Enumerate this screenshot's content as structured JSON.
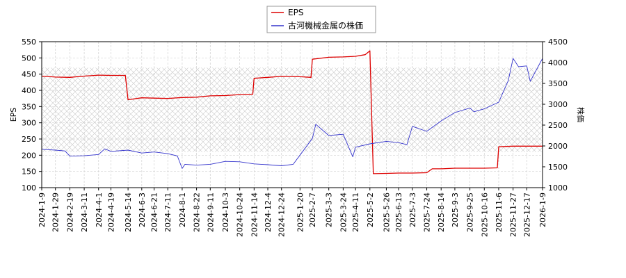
{
  "chart_data": {
    "type": "line",
    "legend": {
      "placement": "top-center",
      "entries": [
        "EPS",
        "古河機械金属の株価"
      ]
    },
    "grid": true,
    "y_left": {
      "label": "EPS",
      "range": [
        100,
        550
      ],
      "ticks": [
        "100",
        "150",
        "200",
        "250",
        "300",
        "350",
        "400",
        "450",
        "500",
        "550"
      ]
    },
    "y_right": {
      "label": "株価",
      "range": [
        1000,
        4500
      ],
      "ticks": [
        "1000",
        "1500",
        "2000",
        "2500",
        "3000",
        "3500",
        "4000",
        "4500"
      ]
    },
    "x": {
      "range": [
        "2024-01-09",
        "2026-01-09"
      ],
      "ticks": [
        "2024-1-9",
        "2024-1-29",
        "2024-2-19",
        "2024-3-11",
        "2024-4-1",
        "2024-4-19",
        "2024-5-14",
        "2024-6-3",
        "2024-6-21",
        "2024-7-11",
        "2024-8-1",
        "2024-8-22",
        "2024-9-11",
        "2024-10-3",
        "2024-10-24",
        "2024-11-14",
        "2024-12-4",
        "2024-12-24",
        "2025-1-20",
        "2025-2-7",
        "2025-3-3",
        "2025-3-24",
        "2025-4-11",
        "2025-5-2",
        "2025-5-26",
        "2025-6-13",
        "2025-7-3",
        "2025-7-24",
        "2025-8-14",
        "2025-9-3",
        "2025-9-25",
        "2025-10-16",
        "2025-11-6",
        "2025-11-27",
        "2025-12-17",
        "2026-1-9"
      ]
    },
    "series": [
      {
        "name": "EPS",
        "axis": "left",
        "color": "#dd0000",
        "points": [
          [
            "2024-01-09",
            444
          ],
          [
            "2024-01-29",
            441
          ],
          [
            "2024-02-19",
            440
          ],
          [
            "2024-03-11",
            444
          ],
          [
            "2024-04-01",
            447
          ],
          [
            "2024-04-19",
            446
          ],
          [
            "2024-05-10",
            446
          ],
          [
            "2024-05-14",
            371
          ],
          [
            "2024-06-03",
            377
          ],
          [
            "2024-06-21",
            376
          ],
          [
            "2024-07-11",
            375
          ],
          [
            "2024-08-01",
            378
          ],
          [
            "2024-08-22",
            379
          ],
          [
            "2024-09-11",
            383
          ],
          [
            "2024-10-03",
            384
          ],
          [
            "2024-10-24",
            387
          ],
          [
            "2024-11-12",
            388
          ],
          [
            "2024-11-14",
            437
          ],
          [
            "2024-12-04",
            440
          ],
          [
            "2024-12-24",
            443
          ],
          [
            "2025-01-20",
            442
          ],
          [
            "2025-02-05",
            440
          ],
          [
            "2025-02-07",
            496
          ],
          [
            "2025-03-03",
            502
          ],
          [
            "2025-03-24",
            503
          ],
          [
            "2025-04-11",
            505
          ],
          [
            "2025-04-25",
            510
          ],
          [
            "2025-05-02",
            522
          ],
          [
            "2025-05-07",
            143
          ],
          [
            "2025-05-26",
            144
          ],
          [
            "2025-06-13",
            145
          ],
          [
            "2025-07-03",
            145
          ],
          [
            "2025-07-24",
            146
          ],
          [
            "2025-08-01",
            158
          ],
          [
            "2025-08-14",
            158
          ],
          [
            "2025-09-03",
            160
          ],
          [
            "2025-09-25",
            160
          ],
          [
            "2025-10-16",
            160
          ],
          [
            "2025-11-04",
            161
          ],
          [
            "2025-11-06",
            226
          ],
          [
            "2025-11-27",
            228
          ],
          [
            "2025-12-17",
            228
          ],
          [
            "2026-01-09",
            228
          ]
        ]
      },
      {
        "name": "古河機械金属の株価",
        "axis": "right",
        "color": "#3333cc",
        "points": [
          [
            "2024-01-09",
            1920
          ],
          [
            "2024-01-29",
            1900
          ],
          [
            "2024-02-12",
            1880
          ],
          [
            "2024-02-19",
            1755
          ],
          [
            "2024-03-11",
            1765
          ],
          [
            "2024-04-01",
            1795
          ],
          [
            "2024-04-10",
            1930
          ],
          [
            "2024-04-19",
            1870
          ],
          [
            "2024-05-14",
            1900
          ],
          [
            "2024-06-03",
            1830
          ],
          [
            "2024-06-21",
            1855
          ],
          [
            "2024-07-11",
            1815
          ],
          [
            "2024-07-25",
            1760
          ],
          [
            "2024-08-01",
            1460
          ],
          [
            "2024-08-05",
            1560
          ],
          [
            "2024-08-22",
            1540
          ],
          [
            "2024-09-11",
            1560
          ],
          [
            "2024-10-03",
            1630
          ],
          [
            "2024-10-24",
            1620
          ],
          [
            "2024-11-14",
            1570
          ],
          [
            "2024-12-04",
            1550
          ],
          [
            "2024-12-24",
            1525
          ],
          [
            "2025-01-10",
            1560
          ],
          [
            "2025-01-20",
            1780
          ],
          [
            "2025-02-07",
            2180
          ],
          [
            "2025-02-12",
            2520
          ],
          [
            "2025-03-03",
            2250
          ],
          [
            "2025-03-24",
            2280
          ],
          [
            "2025-04-07",
            1740
          ],
          [
            "2025-04-11",
            1970
          ],
          [
            "2025-05-02",
            2050
          ],
          [
            "2025-05-26",
            2110
          ],
          [
            "2025-06-13",
            2080
          ],
          [
            "2025-06-25",
            2030
          ],
          [
            "2025-07-03",
            2470
          ],
          [
            "2025-07-24",
            2350
          ],
          [
            "2025-08-14",
            2600
          ],
          [
            "2025-09-03",
            2800
          ],
          [
            "2025-09-25",
            2910
          ],
          [
            "2025-10-01",
            2820
          ],
          [
            "2025-10-16",
            2890
          ],
          [
            "2025-11-06",
            3050
          ],
          [
            "2025-11-20",
            3570
          ],
          [
            "2025-11-27",
            4100
          ],
          [
            "2025-12-05",
            3900
          ],
          [
            "2025-12-17",
            3920
          ],
          [
            "2025-12-22",
            3550
          ],
          [
            "2026-01-09",
            4100
          ]
        ]
      }
    ]
  }
}
